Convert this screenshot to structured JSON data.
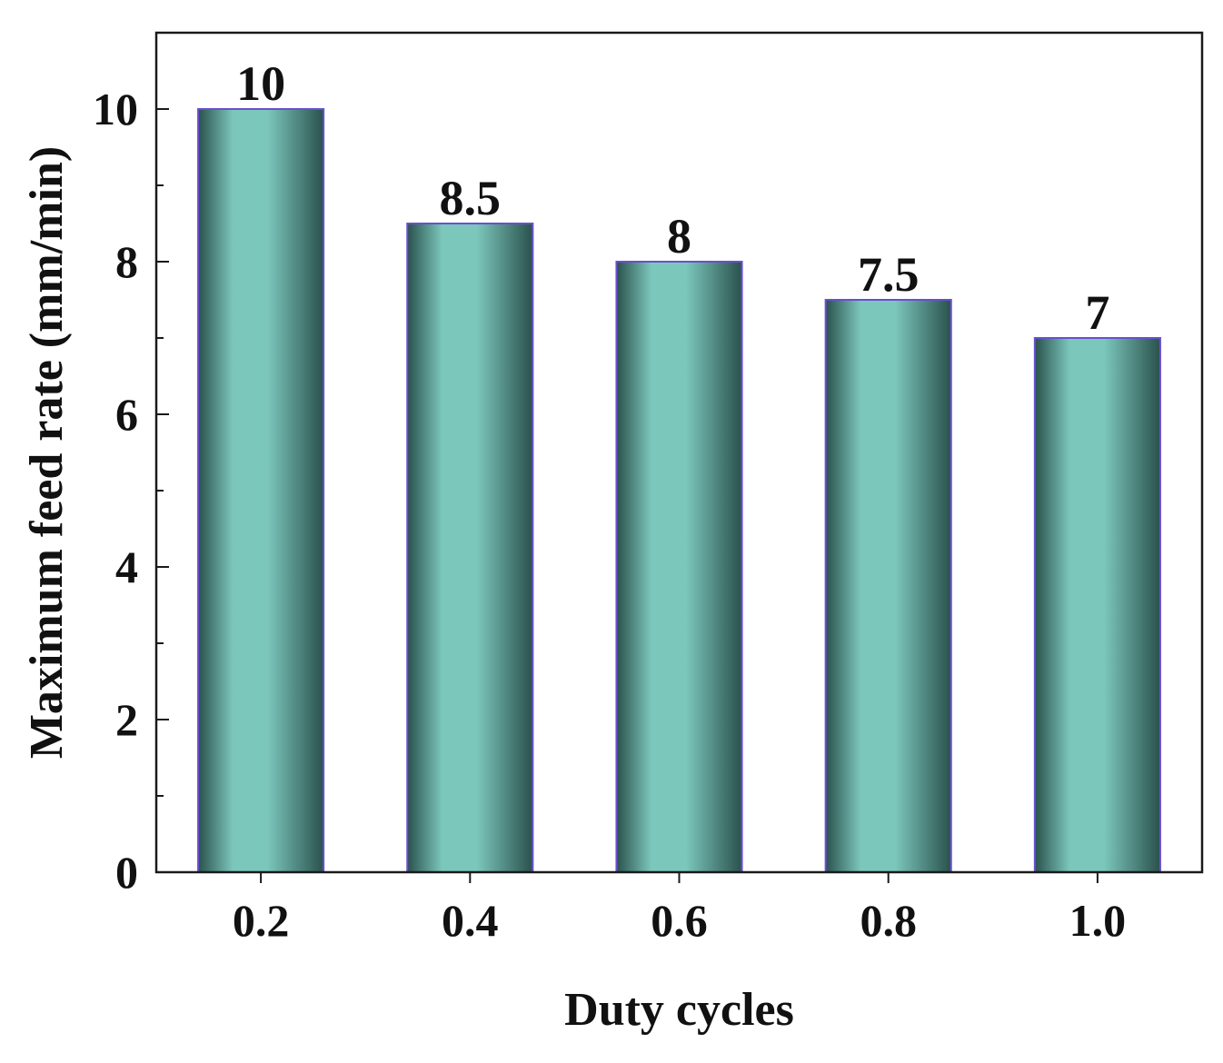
{
  "chart_data": {
    "type": "bar",
    "categories": [
      "0.2",
      "0.4",
      "0.6",
      "0.8",
      "1.0"
    ],
    "values": [
      10,
      8.5,
      8,
      7.5,
      7
    ],
    "data_labels": [
      "10",
      "8.5",
      "8",
      "7.5",
      "7"
    ],
    "title": "",
    "xlabel": "Duty cycles",
    "ylabel": "Maximum feed rate (mm/min)",
    "ylim": [
      0,
      11
    ],
    "yticks": [
      0,
      2,
      4,
      6,
      8,
      10
    ],
    "ytick_labels": [
      "0",
      "2",
      "4",
      "6",
      "8",
      "10"
    ],
    "grid": false,
    "legend": "none",
    "colors": {
      "bar_light": "#7cc7bc",
      "bar_dark": "#2a514d",
      "bar_outline": "#6a4fd0",
      "axis": "#1a1a1a"
    }
  }
}
